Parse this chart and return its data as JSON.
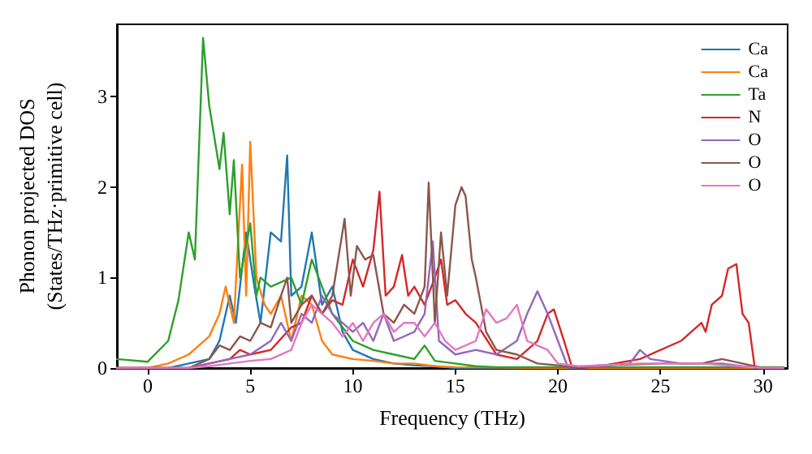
{
  "chart_data": {
    "type": "line",
    "xlabel": "Frequency (THz)",
    "ylabel": "Phonon projected DOS\n(States/THz·primitive cell)",
    "xlim": [
      -1.5,
      31.2
    ],
    "xticks": [
      0,
      5,
      10,
      15,
      20,
      25,
      30
    ],
    "ylim": [
      0,
      3.8
    ],
    "yticks": [
      0,
      1,
      2,
      3
    ],
    "grid": false,
    "legend": "top right",
    "marker": "none",
    "line_style": "solid",
    "series": [
      {
        "name": "Ca",
        "color": "#1f77b4",
        "x": [
          -1.5,
          0,
          1,
          2,
          3,
          3.5,
          4,
          4.3,
          4.8,
          5.2,
          5.5,
          6,
          6.5,
          6.8,
          7,
          7.5,
          8,
          8.5,
          9,
          9.5,
          10,
          11,
          12,
          13,
          14,
          15,
          20,
          31
        ],
        "values": [
          0,
          0,
          0,
          0.05,
          0.1,
          0.3,
          0.8,
          0.5,
          1.5,
          0.9,
          0.5,
          1.5,
          1.4,
          2.35,
          0.8,
          0.9,
          1.5,
          0.7,
          0.9,
          0.4,
          0.2,
          0.1,
          0.05,
          0.03,
          0.02,
          0,
          0,
          0
        ]
      },
      {
        "name": "Ca",
        "color": "#ff7f0e",
        "x": [
          -1.5,
          0,
          1,
          2,
          2.5,
          3,
          3.5,
          3.8,
          4.2,
          4.6,
          4.8,
          5,
          5.3,
          5.7,
          6,
          6.5,
          7,
          7.5,
          8,
          8.5,
          9,
          10,
          11,
          12,
          13,
          14,
          15,
          20,
          31
        ],
        "values": [
          0,
          0,
          0.05,
          0.15,
          0.25,
          0.35,
          0.6,
          0.9,
          0.5,
          2.25,
          0.8,
          2.5,
          1.0,
          0.7,
          0.6,
          0.8,
          0.3,
          0.8,
          0.7,
          0.3,
          0.15,
          0.1,
          0.08,
          0.05,
          0.05,
          0.02,
          0.01,
          0,
          0
        ]
      },
      {
        "name": "Ta",
        "color": "#2ca02c",
        "x": [
          -1.5,
          0,
          1,
          1.5,
          2,
          2.3,
          2.7,
          3,
          3.5,
          3.7,
          4,
          4.2,
          4.5,
          5,
          5.3,
          5.5,
          6,
          7,
          7.5,
          8,
          8.5,
          9,
          10,
          11,
          12,
          13,
          13.5,
          14,
          15,
          16,
          17,
          31
        ],
        "values": [
          0.1,
          0.07,
          0.3,
          0.75,
          1.5,
          1.2,
          3.65,
          2.9,
          2.2,
          2.6,
          1.7,
          2.3,
          1.0,
          1.6,
          0.8,
          1.0,
          0.9,
          1.0,
          0.7,
          1.2,
          0.9,
          0.6,
          0.3,
          0.2,
          0.15,
          0.1,
          0.25,
          0.08,
          0.05,
          0.02,
          0.01,
          0.01
        ]
      },
      {
        "name": "N",
        "color": "#d62728",
        "x": [
          -1.5,
          2,
          3,
          4,
          4.5,
          5,
          6,
          7,
          7.5,
          8,
          8.5,
          9,
          9.5,
          10,
          10.5,
          11,
          11.3,
          11.6,
          12,
          12.4,
          12.7,
          13,
          13.5,
          14,
          14.3,
          14.6,
          15,
          15.5,
          16,
          17,
          18,
          19,
          19.5,
          19.8,
          20.3,
          20.7,
          21,
          22,
          24,
          26,
          27,
          27.2,
          27.5,
          28,
          28.3,
          28.7,
          29,
          29.3,
          29.6,
          30,
          31
        ],
        "values": [
          0,
          0,
          0.05,
          0.1,
          0.2,
          0.15,
          0.2,
          0.45,
          0.5,
          0.8,
          0.6,
          0.75,
          0.7,
          1.2,
          0.9,
          1.3,
          1.95,
          0.8,
          0.9,
          1.25,
          0.8,
          0.9,
          0.7,
          1.0,
          1.2,
          0.7,
          0.75,
          0.6,
          0.5,
          0.15,
          0.1,
          0.3,
          0.6,
          0.65,
          0.3,
          0,
          0,
          0.02,
          0.1,
          0.3,
          0.5,
          0.4,
          0.7,
          0.8,
          1.1,
          1.15,
          0.6,
          0.5,
          0,
          0,
          0
        ]
      },
      {
        "name": "O",
        "color": "#9467bd",
        "x": [
          -1.5,
          2,
          3,
          4,
          5,
          6,
          6.5,
          7,
          7.5,
          8,
          8.5,
          9,
          10,
          10.5,
          11,
          11.5,
          12,
          13,
          13.5,
          13.9,
          14.2,
          15,
          16,
          17,
          18,
          18.5,
          19,
          19.5,
          20,
          20.5,
          21,
          22,
          23.5,
          24,
          24.5,
          26,
          28,
          29,
          30,
          31
        ],
        "values": [
          0,
          0,
          0.05,
          0.1,
          0.15,
          0.3,
          0.5,
          0.3,
          0.6,
          0.5,
          0.8,
          0.6,
          0.4,
          0.5,
          0.3,
          0.6,
          0.3,
          0.4,
          0.6,
          1.4,
          0.3,
          0.15,
          0.2,
          0.15,
          0.3,
          0.6,
          0.85,
          0.6,
          0.3,
          0,
          0,
          0.02,
          0.05,
          0.2,
          0.1,
          0.05,
          0.05,
          0.02,
          0,
          0
        ]
      },
      {
        "name": "O",
        "color": "#8c564b",
        "x": [
          -1.5,
          2,
          3,
          3.5,
          4,
          4.5,
          5,
          5.5,
          6,
          6.5,
          6.8,
          7,
          7.5,
          8,
          8.5,
          9,
          9.6,
          9.9,
          10.2,
          10.6,
          11,
          11.5,
          12,
          12.5,
          13,
          13.5,
          13.7,
          14,
          14.3,
          14.6,
          15,
          15.3,
          15.5,
          15.8,
          16,
          16.5,
          17,
          18,
          19,
          20,
          21,
          22,
          25,
          27,
          28,
          29,
          30,
          31
        ],
        "values": [
          0,
          0,
          0.1,
          0.25,
          0.2,
          0.35,
          0.3,
          0.5,
          0.45,
          0.8,
          1.0,
          0.5,
          0.7,
          0.8,
          0.6,
          0.8,
          1.65,
          0.8,
          1.35,
          1.2,
          1.25,
          0.6,
          0.5,
          0.7,
          0.6,
          0.9,
          2.05,
          0.5,
          1.5,
          0.8,
          1.8,
          2.0,
          1.9,
          1.2,
          1.0,
          0.4,
          0.2,
          0.15,
          0.05,
          0.03,
          0,
          0.03,
          0.05,
          0.05,
          0.1,
          0.05,
          0,
          0
        ]
      },
      {
        "name": "O",
        "color": "#e377c2",
        "x": [
          -1.5,
          2,
          3,
          4,
          5,
          6,
          7,
          7.5,
          8,
          8.5,
          9,
          9.5,
          10,
          10.5,
          11,
          11.5,
          12,
          12.5,
          13,
          13.5,
          14,
          14.5,
          15,
          16,
          16.5,
          17,
          17.5,
          18,
          18.5,
          19,
          19.5,
          20,
          21,
          24,
          27,
          30,
          31
        ],
        "values": [
          0,
          0,
          0.02,
          0.05,
          0.08,
          0.1,
          0.2,
          0.5,
          0.7,
          0.6,
          0.5,
          0.35,
          0.5,
          0.3,
          0.5,
          0.6,
          0.4,
          0.5,
          0.5,
          0.35,
          0.5,
          0.3,
          0.2,
          0.3,
          0.65,
          0.5,
          0.55,
          0.7,
          0.3,
          0.25,
          0.2,
          0.05,
          0.02,
          0.05,
          0.05,
          0,
          0
        ]
      }
    ]
  }
}
